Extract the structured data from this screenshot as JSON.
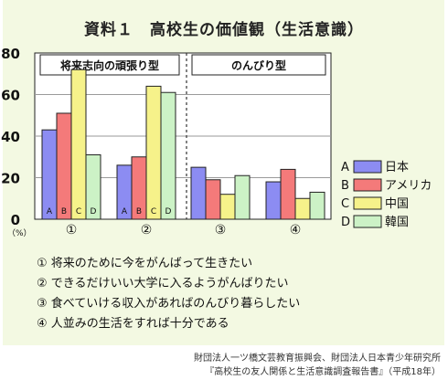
{
  "header": {
    "title": "資料１　高校生の価値観（生活意識）"
  },
  "chart_data": {
    "type": "bar",
    "title": "資料１　高校生の価値観（生活意識）",
    "ylabel": "（%）",
    "ylim": [
      0,
      80
    ],
    "yticks": [
      "0",
      "20",
      "40",
      "60",
      "80"
    ],
    "grid": true,
    "legend_position": "right",
    "categories": [
      "①",
      "②",
      "③",
      "④"
    ],
    "group_labels": [
      "将来志向の頑張り型",
      "のんびり型"
    ],
    "bar_letters": [
      "A",
      "B",
      "C",
      "D"
    ],
    "series": [
      {
        "name": "日本",
        "letter": "A",
        "color": "#8c8cf2",
        "values": [
          43,
          26,
          25,
          18
        ]
      },
      {
        "name": "アメリカ",
        "letter": "B",
        "color": "#f47a7a",
        "values": [
          51,
          30,
          19,
          24
        ]
      },
      {
        "name": "中国",
        "letter": "C",
        "color": "#f6f28a",
        "values": [
          72,
          64,
          12,
          10
        ]
      },
      {
        "name": "韓国",
        "letter": "D",
        "color": "#ccf2c6",
        "values": [
          31,
          61,
          21,
          13
        ]
      }
    ]
  },
  "notes": [
    "① 将来のために今をがんばって生きたい",
    "② できるだけいい大学に入るようがんばりたい",
    "③ 食べていける収入があればのんびり暮らしたい",
    "④ 人並みの生活をすれば十分である"
  ],
  "source": {
    "line1": "財団法人一ツ橋文芸教育振興会、財団法人日本青少年研究所",
    "line2": "『高校生の友人関係と生活意識調査報告書』（平成18年）"
  }
}
